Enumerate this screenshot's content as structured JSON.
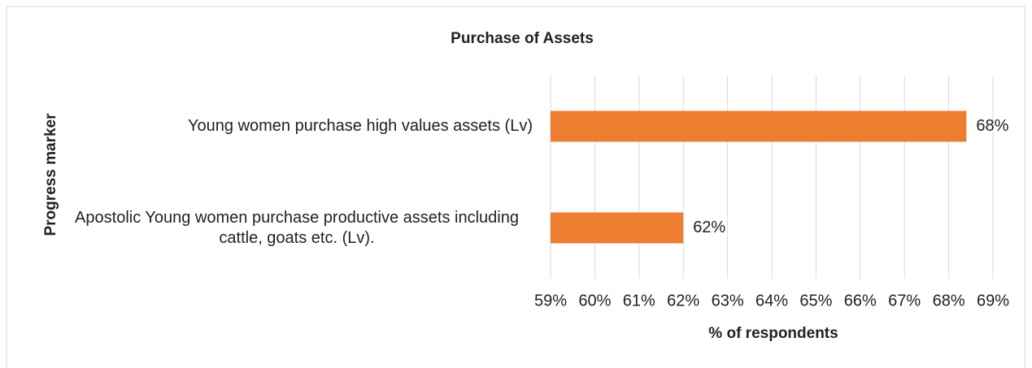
{
  "chart_data": {
    "type": "bar",
    "orientation": "horizontal",
    "title": "Purchase of Assets",
    "x_label": "% of respondents",
    "y_label": "Progress marker",
    "categories": [
      "Young women purchase high values assets  (Lv)",
      "Apostolic Young women purchase productive assets including cattle, goats etc. (Lv)."
    ],
    "values": [
      68.4,
      62
    ],
    "value_labels": [
      "68%",
      "62%"
    ],
    "color": "#ed7d31",
    "xlim": [
      59,
      69
    ],
    "xticks": [
      {
        "value": 59,
        "label": "59%"
      },
      {
        "value": 60,
        "label": "60%"
      },
      {
        "value": 61,
        "label": "61%"
      },
      {
        "value": 62,
        "label": "62%"
      },
      {
        "value": 63,
        "label": "63%"
      },
      {
        "value": 64,
        "label": "64%"
      },
      {
        "value": 65,
        "label": "65%"
      },
      {
        "value": 66,
        "label": "66%"
      },
      {
        "value": 67,
        "label": "67%"
      },
      {
        "value": 68,
        "label": "68%"
      },
      {
        "value": 69,
        "label": "69%"
      }
    ],
    "grid": true
  }
}
